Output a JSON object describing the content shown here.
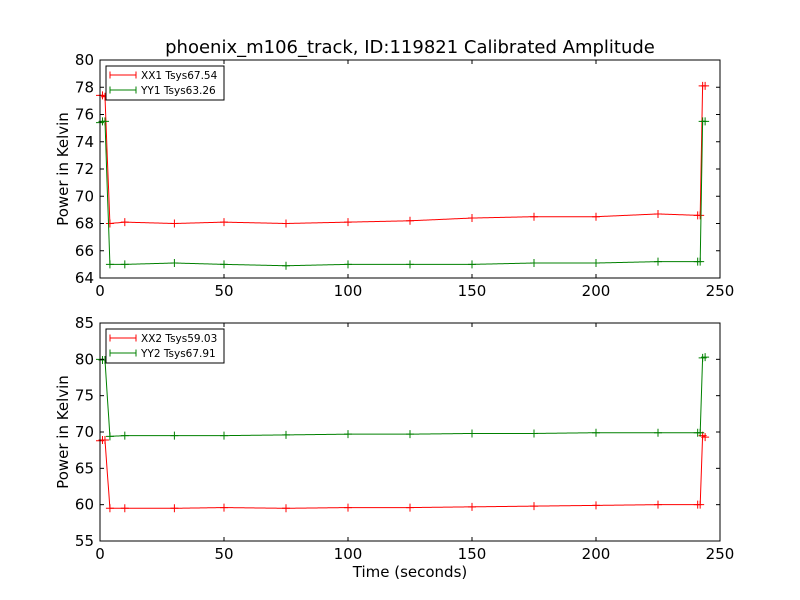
{
  "figure": {
    "title": "phoenix_m106_track, ID:119821 Calibrated Amplitude"
  },
  "chart_data": [
    {
      "type": "line",
      "title": "phoenix_m106_track, ID:119821 Calibrated Amplitude",
      "xlabel": "",
      "ylabel": "Power in Kelvin",
      "xlim": [
        0,
        250
      ],
      "ylim": [
        64,
        80
      ],
      "xticks": [
        0,
        50,
        100,
        150,
        200,
        250
      ],
      "yticks": [
        64,
        66,
        68,
        70,
        72,
        74,
        76,
        78,
        80
      ],
      "grid": false,
      "legend": "top-left",
      "series": [
        {
          "name": "XX1 Tsys67.54",
          "color": "#ff0000",
          "marker": "+",
          "x": [
            0,
            1,
            2,
            4,
            10,
            30,
            50,
            75,
            100,
            125,
            150,
            175,
            200,
            225,
            241,
            242,
            243,
            244
          ],
          "y": [
            77.4,
            77.4,
            77.3,
            68.0,
            68.1,
            68.0,
            68.1,
            68.0,
            68.1,
            68.2,
            68.4,
            68.5,
            68.5,
            68.7,
            68.6,
            68.6,
            78.1,
            78.1
          ]
        },
        {
          "name": "YY1 Tsys63.26",
          "color": "#008000",
          "marker": "+",
          "x": [
            0,
            1,
            2,
            4,
            10,
            30,
            50,
            75,
            100,
            125,
            150,
            175,
            200,
            225,
            241,
            242,
            243,
            244
          ],
          "y": [
            75.4,
            75.5,
            75.5,
            65.0,
            65.0,
            65.1,
            65.0,
            64.9,
            65.0,
            65.0,
            65.0,
            65.1,
            65.1,
            65.2,
            65.2,
            65.2,
            75.5,
            75.5
          ]
        }
      ]
    },
    {
      "type": "line",
      "title": "",
      "xlabel": "Time (seconds)",
      "ylabel": "Power in Kelvin",
      "xlim": [
        0,
        250
      ],
      "ylim": [
        55,
        85
      ],
      "xticks": [
        0,
        50,
        100,
        150,
        200,
        250
      ],
      "yticks": [
        55,
        60,
        65,
        70,
        75,
        80,
        85
      ],
      "grid": false,
      "legend": "top-left",
      "series": [
        {
          "name": "XX2 Tsys59.03",
          "color": "#ff0000",
          "marker": "+",
          "x": [
            0,
            1,
            2,
            4,
            10,
            30,
            50,
            75,
            100,
            125,
            150,
            175,
            200,
            225,
            241,
            242,
            243,
            244
          ],
          "y": [
            68.8,
            68.9,
            68.9,
            59.5,
            59.5,
            59.5,
            59.6,
            59.5,
            59.6,
            59.6,
            59.7,
            59.8,
            59.9,
            60.0,
            60.0,
            60.0,
            69.5,
            69.3
          ]
        },
        {
          "name": "YY2 Tsys67.91",
          "color": "#008000",
          "marker": "+",
          "x": [
            0,
            1,
            2,
            4,
            10,
            30,
            50,
            75,
            100,
            125,
            150,
            175,
            200,
            225,
            241,
            242,
            243,
            244
          ],
          "y": [
            80.0,
            79.9,
            79.9,
            69.4,
            69.5,
            69.5,
            69.5,
            69.6,
            69.7,
            69.7,
            69.8,
            69.8,
            69.9,
            69.9,
            69.9,
            69.9,
            80.2,
            80.3
          ]
        }
      ]
    }
  ]
}
